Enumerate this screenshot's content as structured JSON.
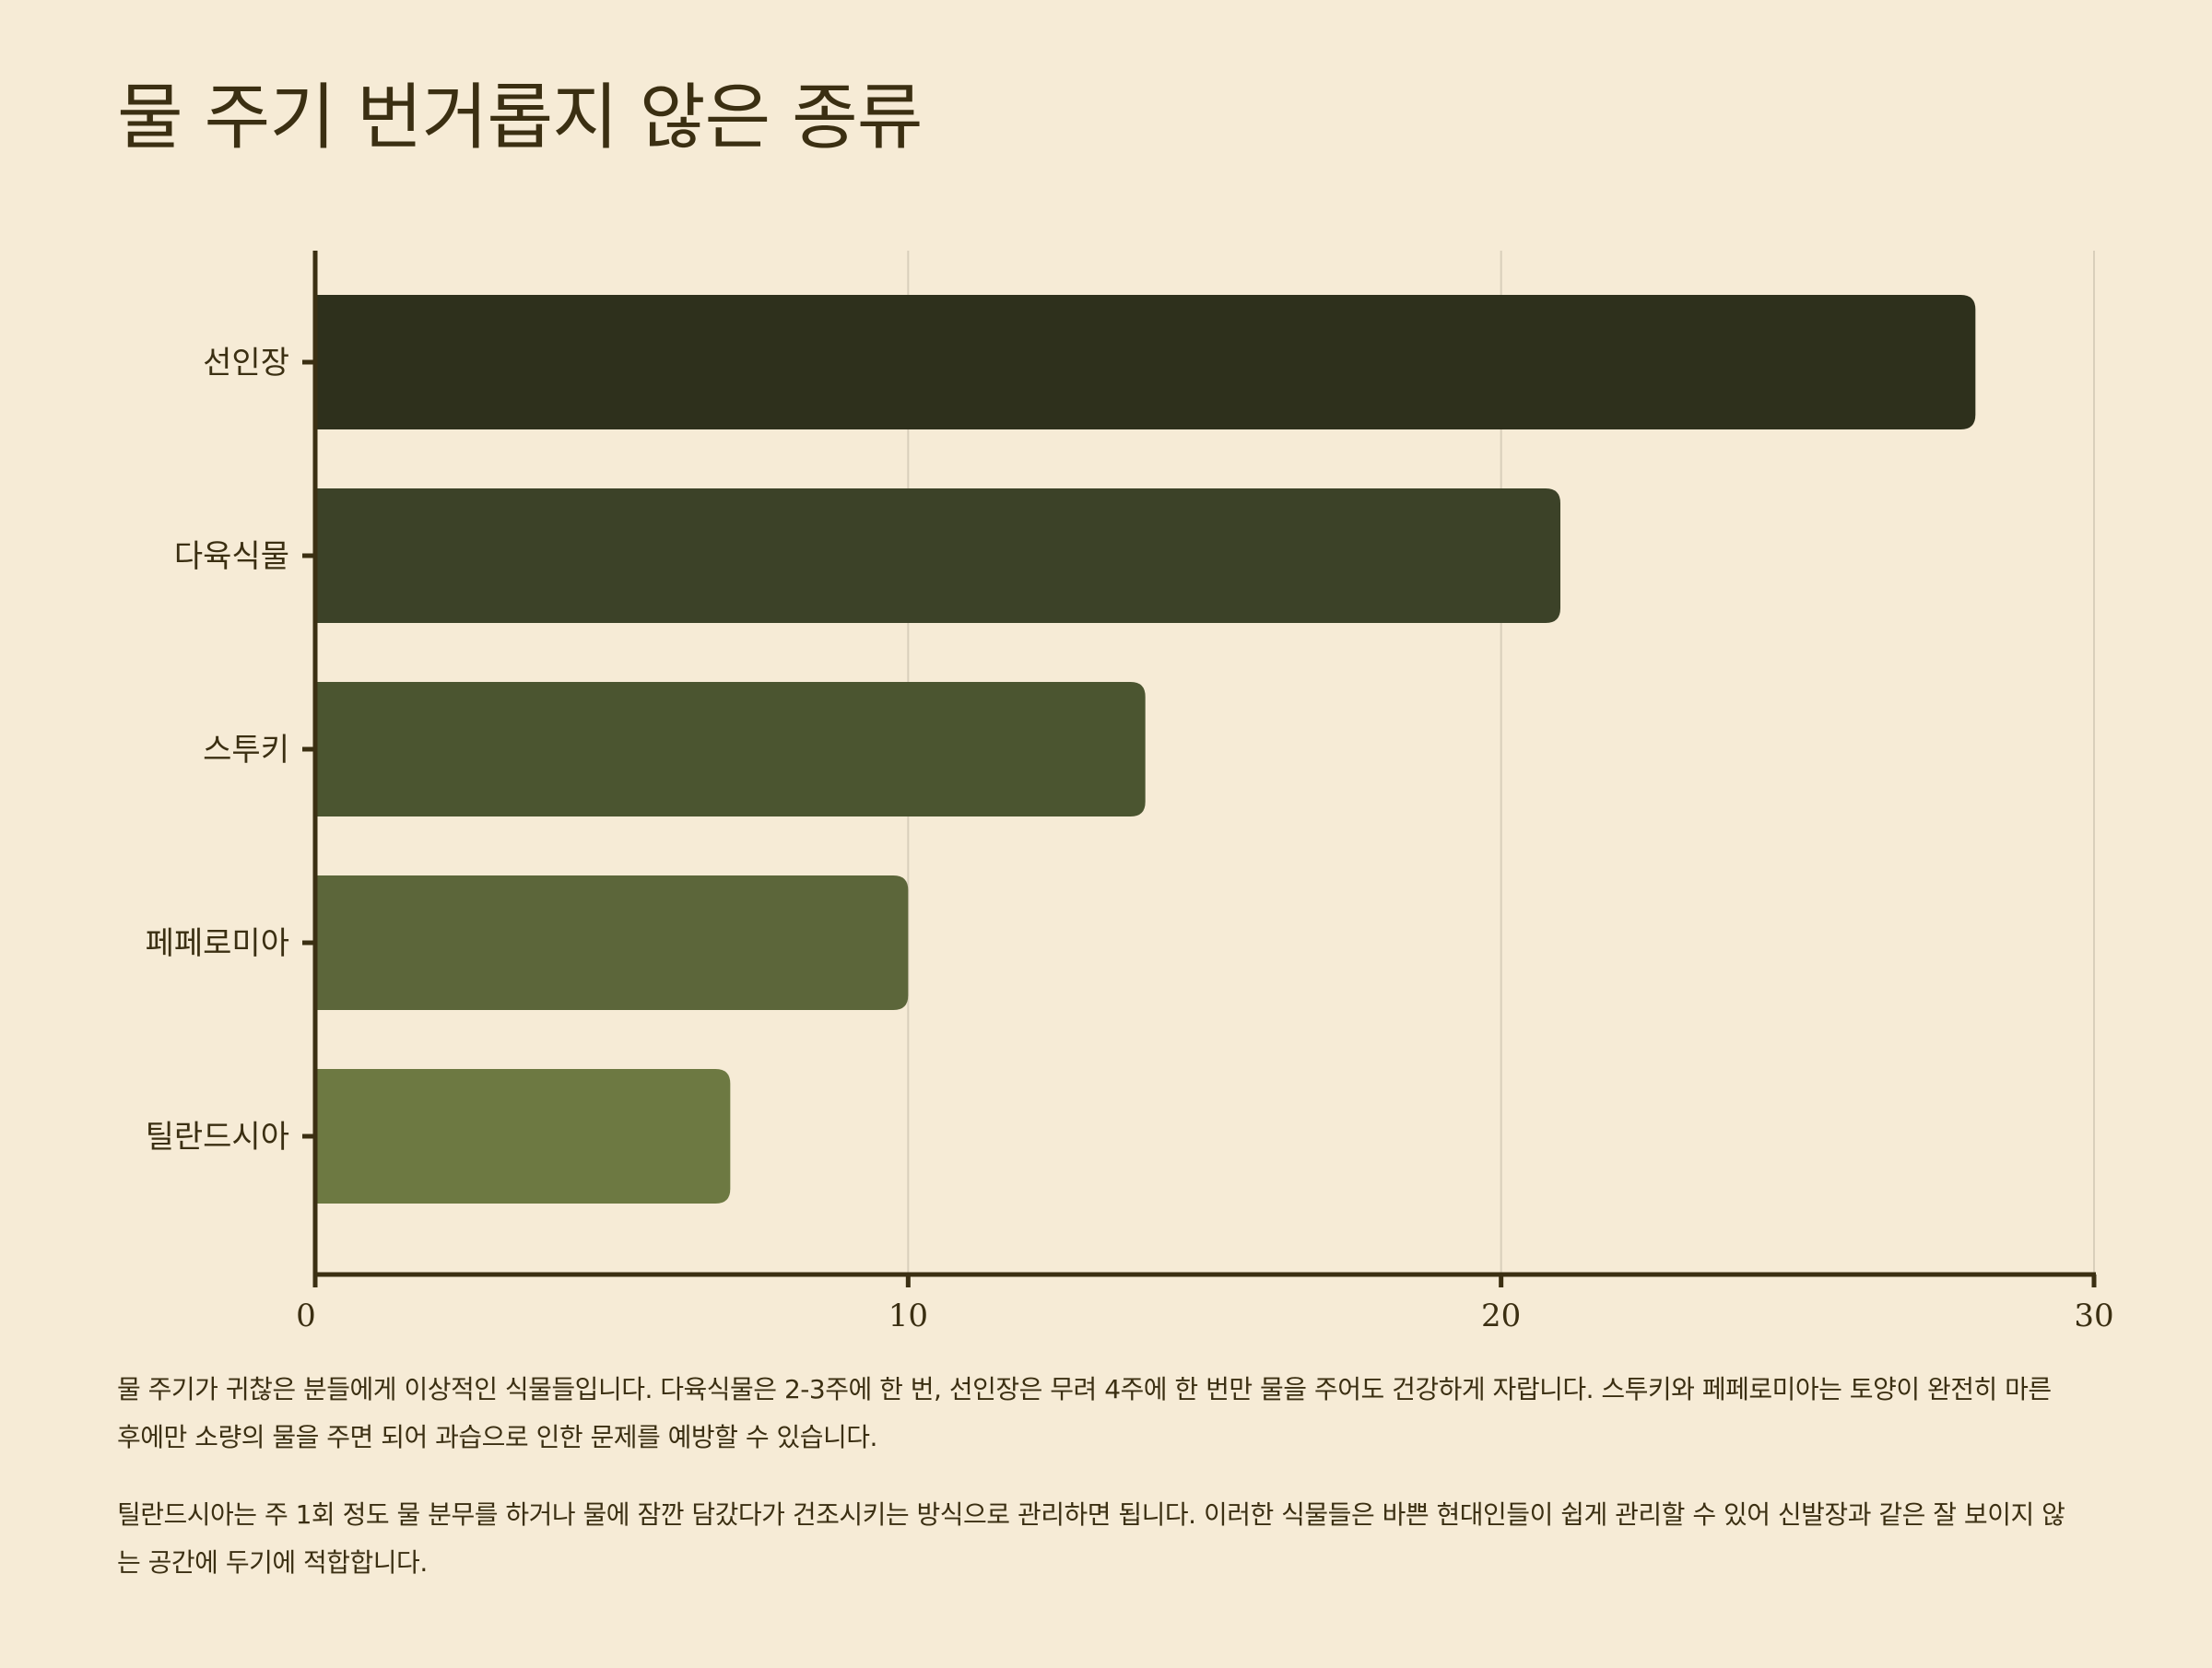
{
  "title": "물 주기 번거롭지 않은 종류",
  "chart_data": {
    "type": "bar",
    "orientation": "horizontal",
    "categories": [
      "선인장",
      "다육식물",
      "스투키",
      "페페로미아",
      "틸란드시아"
    ],
    "values": [
      28,
      21,
      14,
      10,
      7
    ],
    "xlim": [
      0,
      30
    ],
    "xticks": [
      0,
      10,
      20,
      30
    ],
    "grid": true,
    "colors": [
      "#2e301c",
      "#3c4228",
      "#4b5530",
      "#5c663a",
      "#6d7942"
    ],
    "axis_color": "#3b2f12",
    "grid_color": "#d9cfbb"
  },
  "description": [
    "물 주기가 귀찮은 분들에게 이상적인 식물들입니다. 다육식물은 2-3주에 한 번, 선인장은 무려 4주에 한 번만 물을 주어도 건강하게 자랍니다. 스투키와 페페로미아는 토양이 완전히 마른 후에만 소량의 물을 주면 되어 과습으로 인한 문제를 예방할 수 있습니다.",
    "틸란드시아는 주 1회 정도 물 분무를 하거나 물에 잠깐 담갔다가 건조시키는 방식으로 관리하면 됩니다. 이러한 식물들은 바쁜 현대인들이 쉽게 관리할 수 있어 신발장과 같은 잘 보이지 않는 공간에 두기에 적합합니다."
  ]
}
